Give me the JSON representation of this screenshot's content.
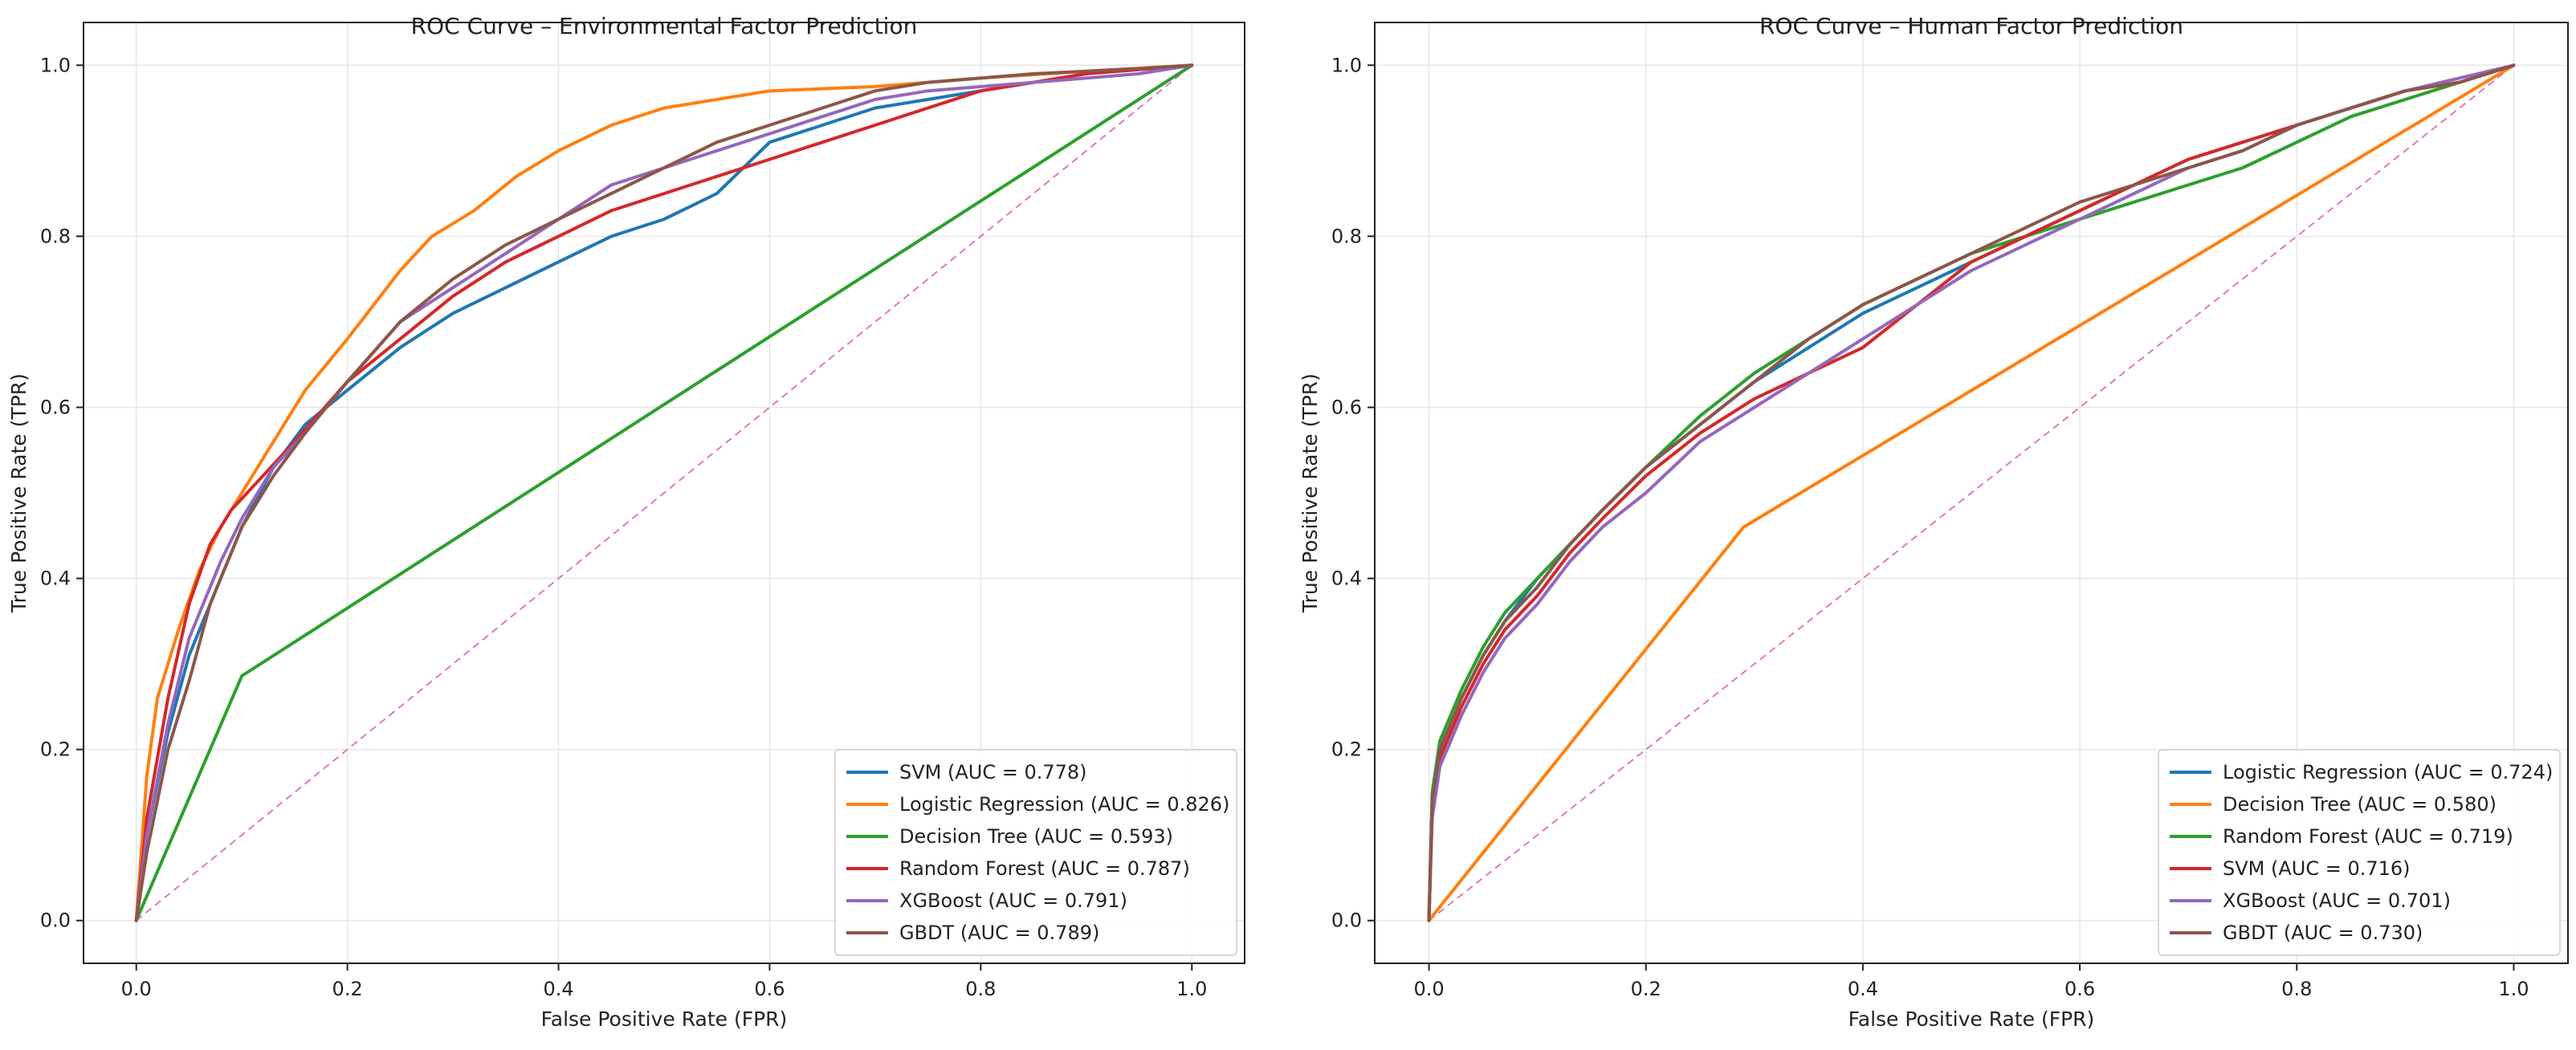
{
  "chart_data": [
    {
      "type": "line",
      "title": "ROC Curve – Environmental Factor Prediction",
      "xlabel": "False Positive Rate (FPR)",
      "ylabel": "True Positive Rate (TPR)",
      "xlim": [
        -0.05,
        1.05
      ],
      "ylim": [
        -0.05,
        1.05
      ],
      "xticks": [
        "0.0",
        "0.2",
        "0.4",
        "0.6",
        "0.8",
        "1.0"
      ],
      "yticks": [
        "0.0",
        "0.2",
        "0.4",
        "0.6",
        "0.8",
        "1.0"
      ],
      "grid": true,
      "legend_position": "lower-right",
      "series": [
        {
          "name": "SVM (AUC = 0.778)",
          "color": "#1f77b4",
          "x": [
            0,
            0.01,
            0.03,
            0.05,
            0.08,
            0.1,
            0.13,
            0.16,
            0.2,
            0.25,
            0.3,
            0.35,
            0.4,
            0.45,
            0.5,
            0.55,
            0.6,
            0.65,
            0.7,
            0.75,
            0.8,
            0.85,
            0.9,
            0.95,
            1.0
          ],
          "y": [
            0,
            0.1,
            0.22,
            0.31,
            0.4,
            0.46,
            0.53,
            0.58,
            0.62,
            0.67,
            0.71,
            0.74,
            0.77,
            0.8,
            0.82,
            0.85,
            0.91,
            0.93,
            0.95,
            0.96,
            0.97,
            0.98,
            0.99,
            0.995,
            1.0
          ]
        },
        {
          "name": "Logistic Regression (AUC = 0.826)",
          "color": "#ff7f0e",
          "x": [
            0,
            0.01,
            0.02,
            0.04,
            0.06,
            0.08,
            0.1,
            0.13,
            0.16,
            0.2,
            0.25,
            0.28,
            0.32,
            0.36,
            0.4,
            0.45,
            0.5,
            0.55,
            0.6,
            0.7,
            0.8,
            0.9,
            1.0
          ],
          "y": [
            0,
            0.17,
            0.26,
            0.34,
            0.41,
            0.46,
            0.5,
            0.56,
            0.62,
            0.68,
            0.76,
            0.8,
            0.83,
            0.87,
            0.9,
            0.93,
            0.95,
            0.96,
            0.97,
            0.975,
            0.985,
            0.993,
            1.0
          ]
        },
        {
          "name": "Decision Tree (AUC = 0.593)",
          "color": "#2ca02c",
          "x": [
            0,
            0.1,
            1.0
          ],
          "y": [
            0,
            0.286,
            1.0
          ]
        },
        {
          "name": "Random Forest (AUC = 0.787)",
          "color": "#d62728",
          "x": [
            0,
            0.01,
            0.03,
            0.05,
            0.07,
            0.09,
            0.12,
            0.15,
            0.2,
            0.25,
            0.3,
            0.35,
            0.4,
            0.45,
            0.5,
            0.55,
            0.6,
            0.65,
            0.7,
            0.75,
            0.8,
            0.85,
            0.9,
            0.95,
            1.0
          ],
          "y": [
            0,
            0.12,
            0.26,
            0.37,
            0.44,
            0.48,
            0.52,
            0.56,
            0.63,
            0.68,
            0.73,
            0.77,
            0.8,
            0.83,
            0.85,
            0.87,
            0.89,
            0.91,
            0.93,
            0.95,
            0.97,
            0.98,
            0.99,
            0.995,
            1.0
          ]
        },
        {
          "name": "XGBoost (AUC = 0.791)",
          "color": "#9467bd",
          "x": [
            0,
            0.01,
            0.03,
            0.05,
            0.08,
            0.1,
            0.13,
            0.16,
            0.2,
            0.25,
            0.3,
            0.35,
            0.4,
            0.45,
            0.5,
            0.55,
            0.6,
            0.65,
            0.7,
            0.75,
            0.8,
            0.85,
            0.9,
            0.95,
            1.0
          ],
          "y": [
            0,
            0.1,
            0.23,
            0.33,
            0.42,
            0.47,
            0.53,
            0.57,
            0.63,
            0.7,
            0.74,
            0.78,
            0.82,
            0.86,
            0.88,
            0.9,
            0.92,
            0.94,
            0.96,
            0.97,
            0.975,
            0.98,
            0.985,
            0.99,
            1.0
          ]
        },
        {
          "name": "GBDT (AUC = 0.789)",
          "color": "#8c564b",
          "x": [
            0,
            0.01,
            0.03,
            0.05,
            0.07,
            0.1,
            0.13,
            0.16,
            0.2,
            0.25,
            0.3,
            0.35,
            0.4,
            0.45,
            0.5,
            0.55,
            0.6,
            0.65,
            0.7,
            0.75,
            0.8,
            0.85,
            0.9,
            0.95,
            1.0
          ],
          "y": [
            0,
            0.08,
            0.2,
            0.28,
            0.37,
            0.46,
            0.52,
            0.57,
            0.63,
            0.7,
            0.75,
            0.79,
            0.82,
            0.85,
            0.88,
            0.91,
            0.93,
            0.95,
            0.97,
            0.98,
            0.985,
            0.99,
            0.993,
            0.996,
            1.0
          ]
        }
      ]
    },
    {
      "type": "line",
      "title": "ROC Curve – Human Factor Prediction",
      "xlabel": "False Positive Rate (FPR)",
      "ylabel": "True Positive Rate (TPR)",
      "xlim": [
        -0.05,
        1.05
      ],
      "ylim": [
        -0.05,
        1.05
      ],
      "xticks": [
        "0.0",
        "0.2",
        "0.4",
        "0.6",
        "0.8",
        "1.0"
      ],
      "yticks": [
        "0.0",
        "0.2",
        "0.4",
        "0.6",
        "0.8",
        "1.0"
      ],
      "grid": true,
      "legend_position": "lower-right",
      "series": [
        {
          "name": "Logistic Regression (AUC = 0.724)",
          "color": "#1f77b4",
          "x": [
            0,
            0.003,
            0.01,
            0.02,
            0.03,
            0.05,
            0.07,
            0.1,
            0.13,
            0.16,
            0.2,
            0.25,
            0.3,
            0.35,
            0.4,
            0.45,
            0.5,
            0.55,
            0.6,
            0.65,
            0.7,
            0.75,
            0.8,
            0.85,
            0.9,
            0.95,
            1.0
          ],
          "y": [
            0,
            0.14,
            0.2,
            0.23,
            0.26,
            0.31,
            0.35,
            0.4,
            0.44,
            0.48,
            0.53,
            0.58,
            0.63,
            0.67,
            0.71,
            0.74,
            0.77,
            0.8,
            0.83,
            0.86,
            0.89,
            0.91,
            0.93,
            0.95,
            0.97,
            0.98,
            1.0
          ]
        },
        {
          "name": "Decision Tree (AUC = 0.580)",
          "color": "#ff7f0e",
          "x": [
            0,
            0.29,
            1.0
          ],
          "y": [
            0,
            0.46,
            1.0
          ]
        },
        {
          "name": "Random Forest (AUC = 0.719)",
          "color": "#2ca02c",
          "x": [
            0,
            0.003,
            0.01,
            0.02,
            0.03,
            0.05,
            0.07,
            0.1,
            0.13,
            0.16,
            0.2,
            0.25,
            0.3,
            0.35,
            0.4,
            0.45,
            0.5,
            0.55,
            0.6,
            0.65,
            0.7,
            0.75,
            0.8,
            0.85,
            0.9,
            0.95,
            1.0
          ],
          "y": [
            0,
            0.15,
            0.21,
            0.24,
            0.27,
            0.32,
            0.36,
            0.4,
            0.44,
            0.48,
            0.53,
            0.59,
            0.64,
            0.68,
            0.72,
            0.75,
            0.78,
            0.8,
            0.82,
            0.84,
            0.86,
            0.88,
            0.91,
            0.94,
            0.96,
            0.98,
            1.0
          ]
        },
        {
          "name": "SVM (AUC = 0.716)",
          "color": "#d62728",
          "x": [
            0,
            0.003,
            0.01,
            0.02,
            0.03,
            0.05,
            0.07,
            0.1,
            0.13,
            0.16,
            0.2,
            0.25,
            0.3,
            0.35,
            0.4,
            0.45,
            0.5,
            0.55,
            0.6,
            0.65,
            0.7,
            0.75,
            0.8,
            0.85,
            0.9,
            0.95,
            1.0
          ],
          "y": [
            0,
            0.13,
            0.19,
            0.22,
            0.25,
            0.3,
            0.34,
            0.38,
            0.43,
            0.47,
            0.52,
            0.57,
            0.61,
            0.64,
            0.67,
            0.72,
            0.77,
            0.8,
            0.83,
            0.86,
            0.89,
            0.91,
            0.93,
            0.95,
            0.97,
            0.98,
            1.0
          ]
        },
        {
          "name": "XGBoost (AUC = 0.701)",
          "color": "#9467bd",
          "x": [
            0,
            0.003,
            0.01,
            0.02,
            0.03,
            0.05,
            0.07,
            0.1,
            0.13,
            0.16,
            0.2,
            0.25,
            0.3,
            0.35,
            0.4,
            0.45,
            0.5,
            0.55,
            0.6,
            0.65,
            0.7,
            0.75,
            0.8,
            0.85,
            0.9,
            0.95,
            1.0
          ],
          "y": [
            0,
            0.12,
            0.18,
            0.21,
            0.24,
            0.29,
            0.33,
            0.37,
            0.42,
            0.46,
            0.5,
            0.56,
            0.6,
            0.64,
            0.68,
            0.72,
            0.76,
            0.79,
            0.82,
            0.85,
            0.88,
            0.9,
            0.93,
            0.95,
            0.97,
            0.985,
            1.0
          ]
        },
        {
          "name": "GBDT (AUC = 0.730)",
          "color": "#8c564b",
          "x": [
            0,
            0.003,
            0.01,
            0.02,
            0.03,
            0.05,
            0.07,
            0.1,
            0.13,
            0.16,
            0.2,
            0.25,
            0.3,
            0.35,
            0.4,
            0.45,
            0.5,
            0.55,
            0.6,
            0.65,
            0.7,
            0.75,
            0.8,
            0.85,
            0.9,
            0.95,
            1.0
          ],
          "y": [
            0,
            0.14,
            0.2,
            0.23,
            0.26,
            0.31,
            0.35,
            0.39,
            0.44,
            0.48,
            0.53,
            0.58,
            0.63,
            0.68,
            0.72,
            0.75,
            0.78,
            0.81,
            0.84,
            0.86,
            0.88,
            0.9,
            0.93,
            0.95,
            0.97,
            0.98,
            1.0
          ]
        }
      ]
    }
  ],
  "diagonal": {
    "color": "#e377c2",
    "x": [
      0,
      1
    ],
    "y": [
      0,
      1
    ]
  }
}
